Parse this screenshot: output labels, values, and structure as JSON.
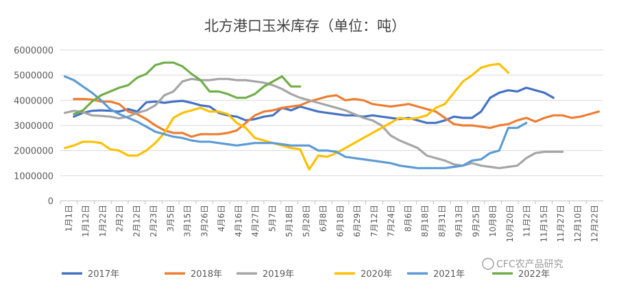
{
  "chart_data": {
    "type": "line",
    "title": "北方港口玉米库存（单位：吨）",
    "xlabel": "",
    "ylabel": "",
    "ylim": [
      0,
      6000000
    ],
    "y_ticks": [
      "0",
      "1000000",
      "2000000",
      "3000000",
      "4000000",
      "5000000",
      "6000000"
    ],
    "y_tick_values": [
      0,
      1000000,
      2000000,
      3000000,
      4000000,
      5000000,
      6000000
    ],
    "grid": true,
    "legend_position": "bottom",
    "x_ticks": [
      "1月1日",
      "1月12日",
      "1月22日",
      "2月2日",
      "2月12日",
      "2月23日",
      "3月5日",
      "3月15日",
      "3月26日",
      "4月6日",
      "4月16日",
      "4月27日",
      "5月7日",
      "5月18日",
      "5月28日",
      "6月8日",
      "6月18日",
      "6月29日",
      "7月12日",
      "7月24日",
      "8月6日",
      "8月18日",
      "8月31日",
      "9月13日",
      "9月25日",
      "10月8日",
      "10月20日",
      "11月2日",
      "11月15日",
      "11月27日",
      "12月10日",
      "12月22日"
    ],
    "series": [
      {
        "name": "2017年",
        "color": "#4472c4",
        "start": 1,
        "values": [
          3350000,
          3500000,
          3580000,
          3600000,
          3580000,
          3550000,
          3650000,
          3550000,
          3920000,
          3950000,
          3900000,
          3950000,
          3980000,
          3900000,
          3800000,
          3750000,
          3500000,
          3400000,
          3350000,
          3200000,
          3250000,
          3350000,
          3400000,
          3700000,
          3600000,
          3750000,
          3650000,
          3550000,
          3500000,
          3450000,
          3400000,
          3400000,
          3350000,
          3400000,
          3350000,
          3300000,
          3250000,
          3300000,
          3200000,
          3100000,
          3100000,
          3200000,
          3350000,
          3300000,
          3300000,
          3550000,
          4100000,
          4300000,
          4400000,
          4350000,
          4500000,
          4400000,
          4300000,
          4100000
        ]
      },
      {
        "name": "2018年",
        "color": "#ed7d31",
        "start": 1,
        "values": [
          4050000,
          4050000,
          4030000,
          3950000,
          3950000,
          3850000,
          3550000,
          3450000,
          3250000,
          3000000,
          2800000,
          2700000,
          2700000,
          2550000,
          2650000,
          2650000,
          2650000,
          2700000,
          2800000,
          3100000,
          3400000,
          3550000,
          3600000,
          3700000,
          3750000,
          3800000,
          3950000,
          4050000,
          4150000,
          4200000,
          4000000,
          4050000,
          4000000,
          3850000,
          3800000,
          3750000,
          3800000,
          3850000,
          3750000,
          3650000,
          3550000,
          3300000,
          3050000,
          3000000,
          3000000,
          2950000,
          2900000,
          3000000,
          3050000,
          3200000,
          3300000,
          3150000,
          3300000,
          3400000,
          3400000,
          3300000,
          3350000,
          3450000,
          3550000
        ]
      },
      {
        "name": "2019年",
        "color": "#a5a5a5",
        "start": 0,
        "values": [
          3500000,
          3580000,
          3520000,
          3400000,
          3380000,
          3350000,
          3280000,
          3350000,
          3500000,
          3600000,
          3800000,
          4200000,
          4350000,
          4750000,
          4850000,
          4800000,
          4800000,
          4850000,
          4850000,
          4800000,
          4800000,
          4750000,
          4700000,
          4600000,
          4450000,
          4250000,
          4100000,
          4000000,
          3900000,
          3800000,
          3700000,
          3600000,
          3450000,
          3300000,
          3200000,
          3000000,
          2600000,
          2400000,
          2250000,
          2100000,
          1800000,
          1700000,
          1600000,
          1450000,
          1400000,
          1500000,
          1400000,
          1350000,
          1300000,
          1350000,
          1400000,
          1700000,
          1900000,
          1950000,
          1950000,
          1950000
        ]
      },
      {
        "name": "2020年",
        "color": "#ffc000",
        "start": 0,
        "values": [
          2100000,
          2200000,
          2350000,
          2350000,
          2300000,
          2050000,
          2000000,
          1800000,
          1800000,
          2000000,
          2300000,
          2700000,
          3300000,
          3500000,
          3600000,
          3700000,
          3550000,
          3550000,
          3450000,
          3100000,
          2900000,
          2500000,
          2400000,
          2300000,
          2200000,
          2100000,
          2050000,
          1250000,
          1800000,
          1750000,
          1900000,
          2100000,
          2300000,
          2500000,
          2700000,
          2900000,
          3100000,
          3300000,
          3250000,
          3300000,
          3400000,
          3700000,
          3850000,
          4300000,
          4750000,
          5000000,
          5300000,
          5400000,
          5450000,
          5100000
        ]
      },
      {
        "name": "2021年",
        "color": "#5b9bd5",
        "start": 0,
        "values": [
          4950000,
          4800000,
          4550000,
          4300000,
          4000000,
          3650000,
          3450000,
          3300000,
          3150000,
          2950000,
          2750000,
          2650000,
          2550000,
          2500000,
          2400000,
          2350000,
          2350000,
          2300000,
          2250000,
          2200000,
          2250000,
          2300000,
          2300000,
          2300000,
          2250000,
          2200000,
          2200000,
          2200000,
          2000000,
          2000000,
          1950000,
          1750000,
          1700000,
          1650000,
          1600000,
          1550000,
          1500000,
          1400000,
          1350000,
          1300000,
          1300000,
          1300000,
          1300000,
          1350000,
          1400000,
          1600000,
          1650000,
          1900000,
          2000000,
          2900000,
          2900000,
          3100000
        ]
      },
      {
        "name": "2022年",
        "color": "#70ad47",
        "start": 1,
        "values": [
          3450000,
          3600000,
          3950000,
          4200000,
          4350000,
          4500000,
          4600000,
          4900000,
          5050000,
          5400000,
          5500000,
          5500000,
          5350000,
          5050000,
          4800000,
          4350000,
          4350000,
          4250000,
          4100000,
          4100000,
          4250000,
          4550000,
          4750000,
          4950000,
          4550000,
          4550000
        ]
      }
    ]
  },
  "watermark": "CFC农产品研究"
}
